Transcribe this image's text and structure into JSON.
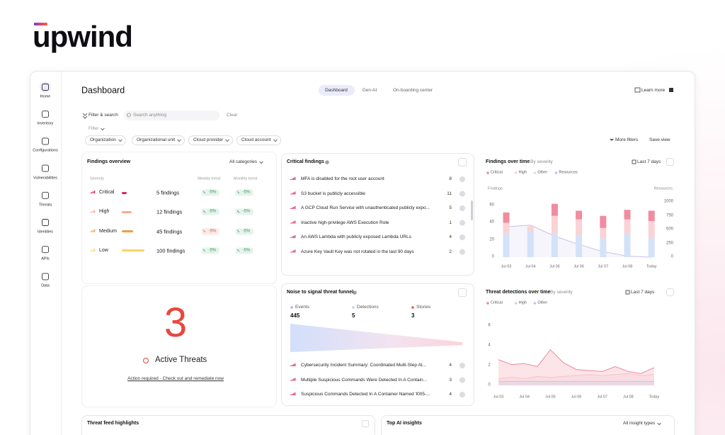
{
  "logo": "upwind",
  "sidebar": {
    "items": [
      {
        "label": "Home"
      },
      {
        "label": "Inventory"
      },
      {
        "label": "Configurations"
      },
      {
        "label": "Vulnerabilities"
      },
      {
        "label": "Threats"
      },
      {
        "label": "Identities"
      },
      {
        "label": "APIs"
      },
      {
        "label": "Data"
      }
    ]
  },
  "header": {
    "title": "Dashboard",
    "tabs": [
      "Dashboard",
      "Gen-AI",
      "On-boarding center"
    ],
    "learn_more": "Learn more"
  },
  "filters": {
    "filter_search": "Filter & search",
    "search_placeholder": "Search anything",
    "clear": "Clear",
    "filter": "Filter",
    "dropdowns": [
      "Organization",
      "Organizational unit",
      "Cloud provider",
      "Cloud account"
    ],
    "more_filters": "More filters",
    "save_view": "Save view"
  },
  "findings_overview": {
    "title": "Findings overview",
    "category_select": "All categories",
    "columns": [
      "Severity",
      "Weekly trend",
      "Monthly trend"
    ],
    "rows": [
      {
        "severity": "Critical",
        "count": "5 findings",
        "weekly": "-5%",
        "monthly": "-5%",
        "color": "#e0245e",
        "weekly_color": "#2f9e5b",
        "monthly_color": "#2f9e5b"
      },
      {
        "severity": "High",
        "count": "12 findings",
        "weekly": "-5%",
        "monthly": "-5%",
        "color": "#f7a994",
        "weekly_color": "#2f9e5b",
        "monthly_color": "#2f9e5b"
      },
      {
        "severity": "Medium",
        "count": "45 findings",
        "weekly": "-5%",
        "monthly": "-5%",
        "color": "#f39a4a",
        "weekly_color": "#e0504f",
        "monthly_color": "#2f9e5b"
      },
      {
        "severity": "Low",
        "count": "100 findings",
        "weekly": "-5%",
        "monthly": "-5%",
        "color": "#f5d56a",
        "weekly_color": "#2f9e5b",
        "monthly_color": "#2f9e5b"
      }
    ]
  },
  "active_threats": {
    "count": 3,
    "label": "Active Threats",
    "link": "Action required - Check out and remediate now"
  },
  "critical_findings": {
    "title": "Critical findings",
    "items": [
      {
        "text": "MFA is disabled for the root user account",
        "count": 8
      },
      {
        "text": "S3 bucket is publicly accessible",
        "count": 11
      },
      {
        "text": "A GCP Cloud Run Service with unauthenticated publicly expo...",
        "count": 5
      },
      {
        "text": "Inactive high-privilege AWS Execution Role",
        "count": 1
      },
      {
        "text": "An AWS Lambda with publicly exposed Lambda URLs",
        "count": 4
      },
      {
        "text": "Azure Key Vault Key was not rotated in the last 90 days",
        "count": 2
      }
    ]
  },
  "funnel": {
    "title": "Noise to signal threat funnel",
    "stages": [
      {
        "name": "Events",
        "value": 445,
        "color": "#9db8f0"
      },
      {
        "name": "Detections",
        "value": 5,
        "color": "#b9d3ee"
      },
      {
        "name": "Stories",
        "value": 3,
        "color": "#e8574f"
      }
    ],
    "items": [
      {
        "text": "Cybersecurity Incident Summary: Coordinated Multi-Step At...",
        "count": 4
      },
      {
        "text": "Multiple Suspicious Commands Were Detected In A Contain...",
        "count": 3
      },
      {
        "text": "Suspicious Commands Detected In A Container Named 'l005-...",
        "count": 4
      }
    ]
  },
  "findings_over_time": {
    "type": "bar",
    "title": "Findings over time",
    "subtitle": "By severity",
    "range": "Last 7 days",
    "y_label": "Findings",
    "y2_label": "Resources",
    "categories": [
      "Jul 03",
      "Jul 04",
      "Jul 05",
      "Jul 06",
      "Jul 07",
      "Jul 08",
      "Today"
    ],
    "series": [
      {
        "name": "Critical",
        "color": "#f08ca0",
        "values": [
          12,
          0,
          14,
          10,
          14,
          11,
          12
        ]
      },
      {
        "name": "High",
        "color": "#fbd2d5",
        "values": [
          13,
          6,
          20,
          18,
          12,
          16,
          20
        ]
      },
      {
        "name": "Other",
        "color": "#d3e2f8",
        "values": [
          27,
          30,
          28,
          26,
          22,
          28,
          22
        ]
      },
      {
        "name": "Resources",
        "color": "#c5bfe8",
        "axis": "y2",
        "values": [
          550,
          580,
          380,
          230,
          100,
          20,
          0
        ]
      }
    ],
    "ylim": [
      0,
      70
    ],
    "yticks": [
      0,
      20,
      40,
      60
    ],
    "y2lim": [
      0,
      1000
    ],
    "y2ticks": [
      0,
      250,
      500,
      750,
      1000
    ]
  },
  "threat_detections": {
    "type": "area",
    "title": "Threat detections over time",
    "subtitle": "By severity",
    "range": "Last 7 days",
    "categories": [
      "Jul 03",
      null,
      "Jul 04",
      null,
      "Jul 05",
      null,
      "Jul 06",
      null,
      "Jul 07",
      null,
      "Jul 08",
      null,
      "Today"
    ],
    "series": [
      {
        "name": "Critical",
        "color": "#f0879c",
        "values": [
          2.6,
          2.1,
          2.2,
          1.9,
          3.6,
          2.3,
          1.6,
          1.5,
          1.4,
          1.9,
          1.4,
          1.2,
          1.8
        ]
      },
      {
        "name": "High",
        "color": "#f7c3c8",
        "values": [
          0.7,
          0.8,
          0.7,
          0.9,
          0.8,
          0.9,
          1.0,
          1.1,
          1.0,
          1.1,
          1.2,
          1.0,
          1.1
        ]
      },
      {
        "name": "Other",
        "color": "#b3cbf2",
        "values": [
          0.4,
          0.4,
          0.4,
          0.4,
          0.4,
          0.4,
          0.4,
          0.4,
          0.4,
          0.4,
          0.4,
          0.4,
          0.4
        ]
      }
    ],
    "ylim": [
      0,
      6.5
    ],
    "yticks": [
      0,
      2,
      4,
      6
    ]
  },
  "threat_feed": {
    "title": "Threat feed highlights"
  },
  "ai_insights": {
    "title": "Top AI insights",
    "select": "All insight types"
  }
}
